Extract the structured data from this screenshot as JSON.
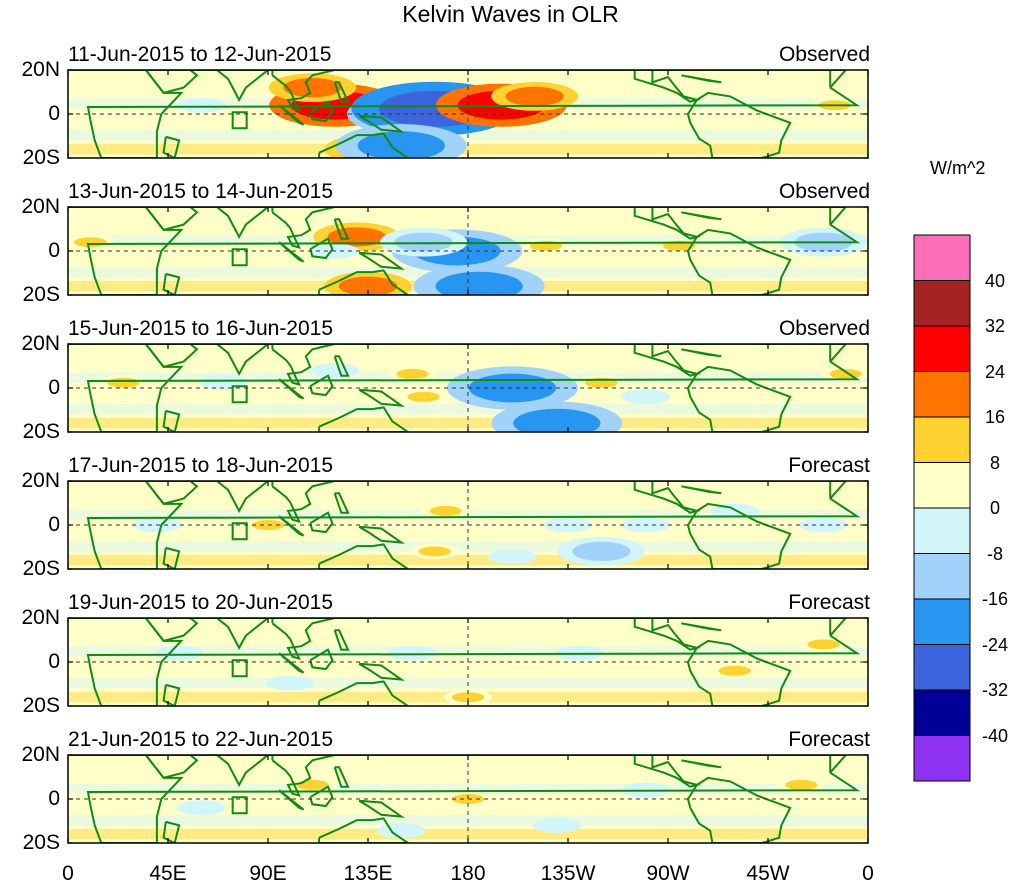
{
  "chart_data": {
    "type": "heatmap",
    "title": "Kelvin Waves in OLR",
    "units_label": "W/m^2",
    "x_ticks": [
      "0",
      "45E",
      "90E",
      "135E",
      "180",
      "135W",
      "90W",
      "45W",
      "0"
    ],
    "y_ticks": [
      "20N",
      "0",
      "20S"
    ],
    "x_range_deg_east": [
      0,
      360
    ],
    "y_range_deg_lat": [
      -25,
      25
    ],
    "colorbar": {
      "levels": [
        "40",
        "32",
        "24",
        "16",
        "8",
        "0",
        "-8",
        "-16",
        "-24",
        "-32",
        "-40"
      ],
      "colors": [
        "#ff6eb9",
        "#a52323",
        "#ff0000",
        "#ff7300",
        "#ffd232",
        "#ffffc8",
        "#d2f5fa",
        "#a0d2fa",
        "#2896f0",
        "#3c64dc",
        "#000096",
        "#8c32f0"
      ]
    },
    "panels": [
      {
        "date_range": "11-Jun-2015 to 12-Jun-2015",
        "type": "Observed",
        "anomalies": [
          {
            "lon": 120,
            "lat": 5,
            "value": 24
          },
          {
            "lon": 135,
            "lat": -20,
            "value": 16
          },
          {
            "lon": 155,
            "lat": 0,
            "value": -24
          },
          {
            "lon": 165,
            "lat": 3,
            "value": -32
          },
          {
            "lon": 150,
            "lat": -18,
            "value": -24
          },
          {
            "lon": 195,
            "lat": 5,
            "value": 24
          },
          {
            "lon": 210,
            "lat": 10,
            "value": 16
          },
          {
            "lon": 110,
            "lat": 15,
            "value": 16
          },
          {
            "lon": 345,
            "lat": 5,
            "value": 8
          },
          {
            "lon": 60,
            "lat": 5,
            "value": -8
          }
        ]
      },
      {
        "date_range": "13-Jun-2015 to 14-Jun-2015",
        "type": "Observed",
        "anomalies": [
          {
            "lon": 130,
            "lat": 8,
            "value": 16
          },
          {
            "lon": 175,
            "lat": 0,
            "value": -24
          },
          {
            "lon": 185,
            "lat": -20,
            "value": -24
          },
          {
            "lon": 160,
            "lat": 5,
            "value": -16
          },
          {
            "lon": 135,
            "lat": -20,
            "value": 16
          },
          {
            "lon": 10,
            "lat": 5,
            "value": 8
          },
          {
            "lon": 215,
            "lat": 3,
            "value": 8
          },
          {
            "lon": 275,
            "lat": 3,
            "value": 8
          },
          {
            "lon": 340,
            "lat": 5,
            "value": -16
          },
          {
            "lon": 120,
            "lat": 0,
            "value": -8
          }
        ]
      },
      {
        "date_range": "15-Jun-2015 to 16-Jun-2015",
        "type": "Observed",
        "anomalies": [
          {
            "lon": 155,
            "lat": 8,
            "value": 8
          },
          {
            "lon": 200,
            "lat": 0,
            "value": -24
          },
          {
            "lon": 220,
            "lat": -20,
            "value": -24
          },
          {
            "lon": 240,
            "lat": 3,
            "value": 8
          },
          {
            "lon": 160,
            "lat": -5,
            "value": 8
          },
          {
            "lon": 260,
            "lat": -5,
            "value": -8
          },
          {
            "lon": 25,
            "lat": 3,
            "value": 8
          },
          {
            "lon": 350,
            "lat": 8,
            "value": 8
          },
          {
            "lon": 70,
            "lat": 3,
            "value": -8
          },
          {
            "lon": 120,
            "lat": 10,
            "value": -8
          }
        ]
      },
      {
        "date_range": "17-Jun-2015 to 18-Jun-2015",
        "type": "Forecast",
        "anomalies": [
          {
            "lon": 170,
            "lat": 8,
            "value": 8
          },
          {
            "lon": 225,
            "lat": 0,
            "value": -8
          },
          {
            "lon": 240,
            "lat": -15,
            "value": -16
          },
          {
            "lon": 200,
            "lat": -18,
            "value": -8
          },
          {
            "lon": 165,
            "lat": -15,
            "value": 8
          },
          {
            "lon": 260,
            "lat": 0,
            "value": -8
          },
          {
            "lon": 300,
            "lat": 8,
            "value": -8
          },
          {
            "lon": 40,
            "lat": 0,
            "value": -8
          },
          {
            "lon": 340,
            "lat": 0,
            "value": -8
          },
          {
            "lon": 90,
            "lat": 0,
            "value": 8
          }
        ]
      },
      {
        "date_range": "19-Jun-2015 to 20-Jun-2015",
        "type": "Forecast",
        "anomalies": [
          {
            "lon": 180,
            "lat": -20,
            "value": 8
          },
          {
            "lon": 155,
            "lat": 5,
            "value": -8
          },
          {
            "lon": 230,
            "lat": 5,
            "value": -8
          },
          {
            "lon": 50,
            "lat": 5,
            "value": -8
          },
          {
            "lon": 300,
            "lat": -5,
            "value": 8
          },
          {
            "lon": 100,
            "lat": -12,
            "value": -8
          },
          {
            "lon": 340,
            "lat": 10,
            "value": 8
          }
        ]
      },
      {
        "date_range": "21-Jun-2015 to 22-Jun-2015",
        "type": "Forecast",
        "anomalies": [
          {
            "lon": 180,
            "lat": 0,
            "value": 8
          },
          {
            "lon": 220,
            "lat": -15,
            "value": -8
          },
          {
            "lon": 150,
            "lat": -18,
            "value": -8
          },
          {
            "lon": 60,
            "lat": -5,
            "value": -8
          },
          {
            "lon": 330,
            "lat": 8,
            "value": 8
          },
          {
            "lon": 260,
            "lat": 5,
            "value": -8
          },
          {
            "lon": 110,
            "lat": 8,
            "value": 8
          }
        ]
      }
    ]
  }
}
